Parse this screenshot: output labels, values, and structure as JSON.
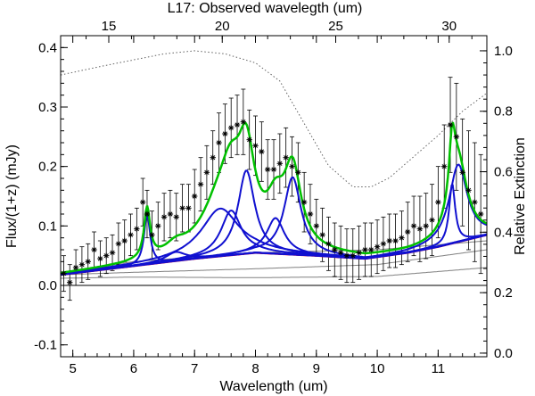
{
  "chart_data": {
    "type": "line",
    "title": "L17: Observed wavelegth (um)",
    "xlabel": "Wavelength (um)",
    "ylabel": "Flux/(1+z) (mJy)",
    "ylabel_right": "Relative Extinction",
    "xlim": [
      4.8,
      11.8
    ],
    "ylim": [
      -0.12,
      0.42
    ],
    "ylim_right": [
      -0.012,
      1.05
    ],
    "x_ticks": [
      "5",
      "6",
      "7",
      "8",
      "9",
      "10",
      "11"
    ],
    "y_ticks": [
      "-0.1",
      "0.0",
      "0.1",
      "0.2",
      "0.3",
      "0.4"
    ],
    "top_ticks": [
      "15",
      "20",
      "25",
      "30"
    ],
    "right_ticks": [
      "0.0",
      "0.2",
      "0.4",
      "0.6",
      "0.8",
      "1.0"
    ],
    "top_tick_observed_um": [
      15,
      20,
      25,
      30
    ],
    "redshift_factor": 2.683,
    "colors": {
      "data": "#000000",
      "total_fit": "#00c000",
      "features": "#1010d0",
      "continuum": "#e0103c",
      "stellar": "#808080",
      "extinction": "#606060",
      "zero_line": "#000000"
    },
    "observed": {
      "x": [
        4.85,
        4.95,
        5.05,
        5.15,
        5.25,
        5.35,
        5.45,
        5.55,
        5.65,
        5.75,
        5.85,
        5.95,
        6.05,
        6.15,
        6.22,
        6.3,
        6.4,
        6.5,
        6.6,
        6.7,
        6.8,
        6.9,
        7.0,
        7.1,
        7.2,
        7.3,
        7.4,
        7.5,
        7.6,
        7.7,
        7.8,
        7.9,
        8.0,
        8.1,
        8.2,
        8.3,
        8.4,
        8.5,
        8.6,
        8.7,
        8.8,
        8.9,
        9.0,
        9.1,
        9.2,
        9.3,
        9.4,
        9.5,
        9.6,
        9.7,
        9.8,
        9.9,
        10.0,
        10.1,
        10.2,
        10.3,
        10.4,
        10.5,
        10.6,
        10.7,
        10.8,
        10.9,
        11.0,
        11.1,
        11.2,
        11.3,
        11.4,
        11.5,
        11.6,
        11.7
      ],
      "y": [
        0.02,
        0.005,
        0.03,
        0.035,
        0.04,
        0.06,
        0.045,
        0.05,
        0.055,
        0.07,
        0.075,
        0.085,
        0.095,
        0.14,
        0.12,
        0.085,
        0.1,
        0.115,
        0.12,
        0.115,
        0.13,
        0.13,
        0.15,
        0.17,
        0.19,
        0.215,
        0.24,
        0.255,
        0.265,
        0.27,
        0.275,
        0.245,
        0.235,
        0.225,
        0.195,
        0.195,
        0.205,
        0.215,
        0.2,
        0.19,
        0.14,
        0.12,
        0.1,
        0.085,
        0.07,
        0.06,
        0.055,
        0.05,
        0.05,
        0.055,
        0.06,
        0.06,
        0.065,
        0.07,
        0.075,
        0.075,
        0.08,
        0.09,
        0.1,
        0.095,
        0.1,
        0.11,
        0.14,
        0.2,
        0.27,
        0.25,
        0.19,
        0.16,
        0.14,
        0.12
      ],
      "err": [
        0.03,
        0.03,
        0.03,
        0.03,
        0.03,
        0.03,
        0.03,
        0.03,
        0.03,
        0.035,
        0.035,
        0.035,
        0.035,
        0.04,
        0.04,
        0.04,
        0.04,
        0.04,
        0.04,
        0.04,
        0.04,
        0.04,
        0.045,
        0.045,
        0.045,
        0.045,
        0.05,
        0.05,
        0.05,
        0.05,
        0.055,
        0.05,
        0.05,
        0.05,
        0.05,
        0.05,
        0.05,
        0.05,
        0.05,
        0.05,
        0.05,
        0.05,
        0.045,
        0.045,
        0.045,
        0.045,
        0.045,
        0.045,
        0.045,
        0.045,
        0.045,
        0.045,
        0.045,
        0.045,
        0.045,
        0.045,
        0.045,
        0.05,
        0.05,
        0.055,
        0.055,
        0.06,
        0.06,
        0.07,
        0.08,
        0.09,
        0.09,
        0.1,
        0.1,
        0.1
      ]
    },
    "continuum": {
      "x": [
        4.8,
        7.0,
        8.0,
        9.0,
        9.8,
        10.5,
        11.0,
        11.8
      ],
      "y": [
        0.018,
        0.045,
        0.055,
        0.05,
        0.045,
        0.055,
        0.065,
        0.085
      ]
    },
    "stellar_components": [
      {
        "x": [
          4.8,
          6.0,
          8.0,
          10.0,
          11.8
        ],
        "y": [
          0.022,
          0.04,
          0.055,
          0.06,
          0.075
        ]
      },
      {
        "x": [
          4.8,
          6.0,
          8.0,
          10.0,
          11.8
        ],
        "y": [
          0.018,
          0.022,
          0.028,
          0.035,
          0.06
        ]
      },
      {
        "x": [
          4.8,
          6.0,
          8.0,
          10.0,
          11.8
        ],
        "y": [
          0.012,
          0.014,
          0.013,
          0.015,
          0.03
        ]
      }
    ],
    "pah_features": [
      {
        "center": 6.22,
        "fwhm": 0.12,
        "peak": 0.085
      },
      {
        "center": 6.69,
        "fwhm": 0.4,
        "peak": 0.015
      },
      {
        "center": 7.42,
        "fwhm": 0.75,
        "peak": 0.08
      },
      {
        "center": 7.6,
        "fwhm": 0.4,
        "peak": 0.075
      },
      {
        "center": 7.85,
        "fwhm": 0.33,
        "peak": 0.14
      },
      {
        "center": 8.33,
        "fwhm": 0.35,
        "peak": 0.06
      },
      {
        "center": 8.61,
        "fwhm": 0.34,
        "peak": 0.13
      },
      {
        "center": 11.23,
        "fwhm": 0.12,
        "peak": 0.1
      },
      {
        "center": 11.33,
        "fwhm": 0.36,
        "peak": 0.13
      }
    ],
    "extinction_curve": {
      "x": [
        4.8,
        5.5,
        6.5,
        7.0,
        7.5,
        8.0,
        8.4,
        8.8,
        9.2,
        9.6,
        9.9,
        10.2,
        10.6,
        11.0,
        11.4,
        11.8
      ],
      "y": [
        0.92,
        0.95,
        0.99,
        1.0,
        0.99,
        0.96,
        0.9,
        0.76,
        0.62,
        0.55,
        0.55,
        0.58,
        0.65,
        0.72,
        0.8,
        0.86
      ]
    },
    "zero_line": 0.0
  }
}
